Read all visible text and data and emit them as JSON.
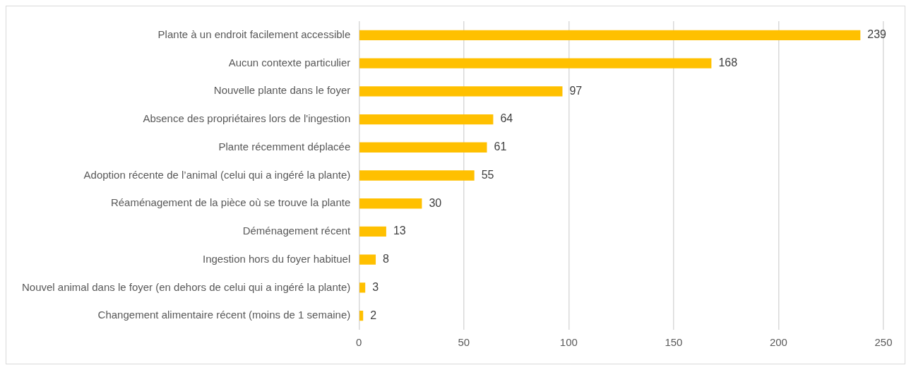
{
  "chart_data": {
    "type": "bar",
    "orientation": "horizontal",
    "categories": [
      "Plante à un endroit facilement accessible",
      "Aucun contexte particulier",
      "Nouvelle plante dans le foyer",
      "Absence des propriétaires lors de l'ingestion",
      "Plante récemment déplacée",
      "Adoption récente de l’animal (celui qui a ingéré la plante)",
      "Réaménagement de la pièce où se trouve la plante",
      "Déménagement récent",
      "Ingestion hors du foyer habituel",
      "Nouvel animal dans le foyer (en dehors de celui qui a ingéré la plante)",
      "Changement alimentaire récent (moins de 1 semaine)"
    ],
    "values": [
      239,
      168,
      97,
      64,
      61,
      55,
      30,
      13,
      8,
      3,
      2
    ],
    "color": "#ffc000",
    "xlim": [
      0,
      250
    ],
    "xticks": [
      0,
      50,
      100,
      150,
      200,
      250
    ],
    "grid": "x",
    "legend": false,
    "data_labels": true
  }
}
